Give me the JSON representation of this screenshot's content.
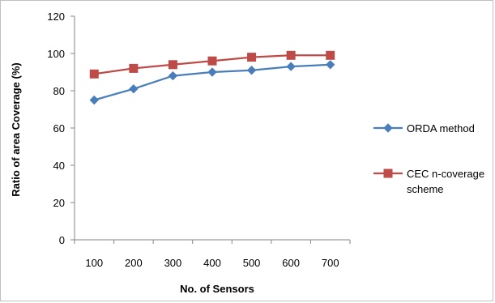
{
  "chart_data": {
    "type": "line",
    "title": "",
    "xlabel": "No. of Sensors",
    "ylabel": "Ratio of area Coverage (%)",
    "categories": [
      "100",
      "200",
      "300",
      "400",
      "500",
      "600",
      "700"
    ],
    "ylim": [
      0,
      120
    ],
    "yticks": [
      0,
      20,
      40,
      60,
      80,
      100,
      120
    ],
    "grid": false,
    "legend_position": "right",
    "series": [
      {
        "name": "ORDA method",
        "color": "#4a7ebb",
        "marker": "diamond",
        "values": [
          75,
          81,
          88,
          90,
          91,
          93,
          94
        ]
      },
      {
        "name": "CEC n-coverage scheme",
        "legend_lines": [
          "CEC n-coverage",
          "scheme"
        ],
        "color": "#be4b48",
        "marker": "square",
        "values": [
          89,
          92,
          94,
          96,
          98,
          99,
          99
        ]
      }
    ]
  }
}
